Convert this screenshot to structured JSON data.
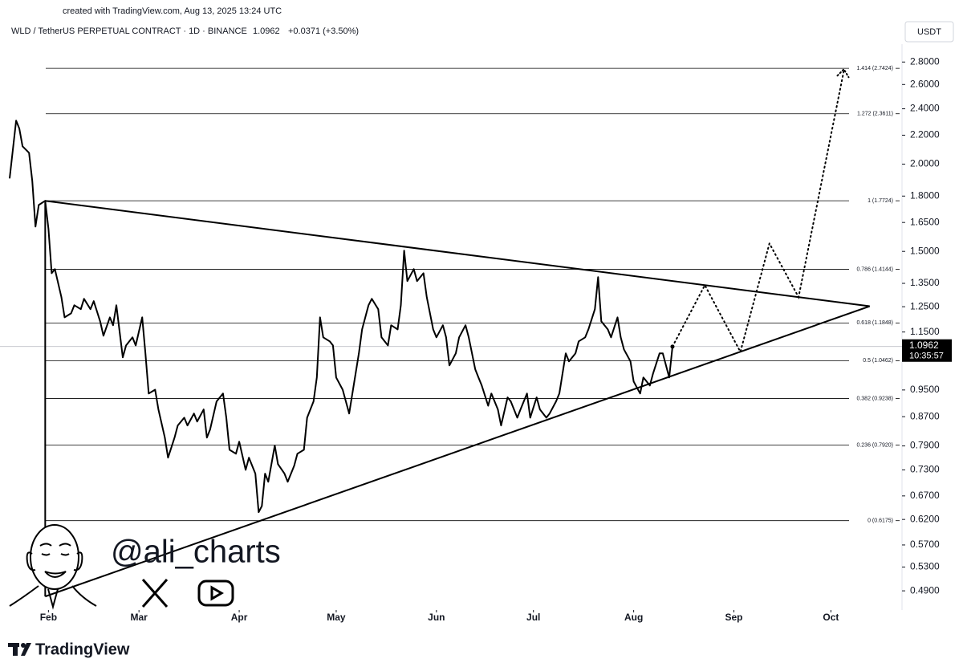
{
  "chart_data": {
    "type": "line",
    "created_with": "created with TradingView.com, Aug 13, 2025 13:24 UTC",
    "title": "WLD / TetherUS PERPETUAL CONTRACT · 1D · BINANCE",
    "last_price": 1.0962,
    "change": "+0.0371 (+3.50%)",
    "countdown": "10:35:57",
    "currency": "USDT",
    "watermark": "@ali_charts",
    "logo": "TradingView",
    "log_scale": true,
    "xlim": [
      19.5,
      295
    ],
    "xticks": [
      {
        "value": 32,
        "label": "Feb"
      },
      {
        "value": 60,
        "label": "Mar"
      },
      {
        "value": 91,
        "label": "Apr"
      },
      {
        "value": 121,
        "label": "May"
      },
      {
        "value": 152,
        "label": "Jun"
      },
      {
        "value": 182,
        "label": "Jul"
      },
      {
        "value": 213,
        "label": "Aug"
      },
      {
        "value": 244,
        "label": "Sep"
      },
      {
        "value": 274,
        "label": "Oct"
      }
    ],
    "ylim": [
      2.97,
      0.46
    ],
    "yticks": [
      {
        "value": 2.8,
        "label": "2.8000"
      },
      {
        "value": 2.6,
        "label": "2.6000"
      },
      {
        "value": 2.4,
        "label": "2.4000"
      },
      {
        "value": 2.2,
        "label": "2.2000"
      },
      {
        "value": 2.0,
        "label": "2.0000"
      },
      {
        "value": 1.8,
        "label": "1.8000"
      },
      {
        "value": 1.65,
        "label": "1.6500"
      },
      {
        "value": 1.5,
        "label": "1.5000"
      },
      {
        "value": 1.35,
        "label": "1.3500"
      },
      {
        "value": 1.25,
        "label": "1.2500"
      },
      {
        "value": 1.15,
        "label": "1.1500"
      },
      {
        "value": 0.95,
        "label": "0.9500"
      },
      {
        "value": 0.87,
        "label": "0.8700"
      },
      {
        "value": 0.79,
        "label": "0.7900"
      },
      {
        "value": 0.73,
        "label": "0.7300"
      },
      {
        "value": 0.67,
        "label": "0.6700"
      },
      {
        "value": 0.62,
        "label": "0.6200"
      },
      {
        "value": 0.57,
        "label": "0.5700"
      },
      {
        "value": 0.53,
        "label": "0.5300"
      },
      {
        "value": 0.49,
        "label": "0.4900"
      }
    ],
    "fib_levels": [
      {
        "value": 2.7424,
        "label": "1.414 (2.7424)"
      },
      {
        "value": 2.3611,
        "label": "1.272 (2.3611)"
      },
      {
        "value": 1.7724,
        "label": "1 (1.7724)"
      },
      {
        "value": 1.4144,
        "label": "0.786 (1.4144)"
      },
      {
        "value": 1.1848,
        "label": "0.618 (1.1848)"
      },
      {
        "value": 1.0462,
        "label": "0.5 (1.0462)"
      },
      {
        "value": 0.9238,
        "label": "0.382 (0.9238)"
      },
      {
        "value": 0.792,
        "label": "0.236 (0.7920)"
      },
      {
        "value": 0.6175,
        "label": "0 (0.6175)"
      }
    ],
    "price": {
      "color": "#000000",
      "x": [
        20,
        22,
        23,
        24,
        26,
        27,
        28,
        29,
        31,
        32,
        33,
        34,
        36,
        37,
        39,
        40,
        42,
        43,
        45,
        46,
        48,
        49,
        51,
        52,
        53,
        55,
        56,
        58,
        59,
        61,
        62,
        63,
        65,
        66,
        68,
        69,
        71,
        72,
        74,
        75,
        77,
        78,
        80,
        81,
        82,
        84,
        86,
        87,
        88,
        90,
        91,
        93,
        94,
        96,
        97,
        98,
        99,
        100,
        102,
        103,
        105,
        106,
        108,
        109,
        111,
        112,
        114,
        115,
        116,
        117,
        119,
        120,
        121,
        123,
        125,
        126,
        128,
        129,
        131,
        132,
        134,
        135,
        137,
        138,
        140,
        141,
        142,
        143,
        145,
        146,
        148,
        149,
        151,
        152,
        154,
        155,
        156,
        158,
        159,
        161,
        162,
        164,
        165,
        166,
        168,
        169,
        171,
        172,
        174,
        175,
        177,
        178,
        180,
        181,
        183,
        184,
        186,
        187,
        189,
        190,
        192,
        193,
        195,
        196,
        198,
        199,
        201,
        202,
        203,
        205,
        206,
        208,
        209,
        210,
        212,
        213,
        215,
        216,
        218,
        219,
        221,
        222,
        224,
        225
      ],
      "values": [
        1.908,
        2.308,
        2.248,
        2.121,
        2.076,
        1.893,
        1.628,
        1.748,
        1.772,
        1.615,
        1.396,
        1.415,
        1.29,
        1.207,
        1.223,
        1.256,
        1.24,
        1.283,
        1.24,
        1.273,
        1.191,
        1.136,
        1.207,
        1.176,
        1.256,
        1.058,
        1.1,
        1.13,
        1.1,
        1.207,
        1.072,
        0.939,
        0.951,
        0.891,
        0.812,
        0.76,
        0.812,
        0.845,
        0.867,
        0.845,
        0.879,
        0.856,
        0.891,
        0.812,
        0.834,
        0.915,
        0.939,
        0.867,
        0.78,
        0.77,
        0.801,
        0.73,
        0.76,
        0.721,
        0.635,
        0.648,
        0.721,
        0.702,
        0.791,
        0.744,
        0.721,
        0.702,
        0.74,
        0.77,
        0.78,
        0.867,
        0.915,
        0.99,
        1.207,
        1.13,
        1.115,
        1.1,
        0.99,
        0.951,
        0.879,
        0.939,
        1.072,
        1.16,
        1.256,
        1.283,
        1.24,
        1.13,
        1.1,
        1.176,
        1.16,
        1.256,
        1.504,
        1.36,
        1.415,
        1.36,
        1.396,
        1.29,
        1.16,
        1.13,
        1.176,
        1.13,
        1.03,
        1.072,
        1.13,
        1.176,
        1.13,
        1.017,
        0.99,
        0.964,
        0.902,
        0.939,
        0.891,
        0.845,
        0.927,
        0.915,
        0.867,
        0.891,
        0.939,
        0.867,
        0.927,
        0.891,
        0.867,
        0.879,
        0.915,
        0.939,
        1.072,
        1.044,
        1.072,
        1.115,
        1.13,
        1.16,
        1.24,
        1.378,
        1.191,
        1.16,
        1.13,
        1.207,
        1.13,
        1.086,
        1.044,
        0.977,
        0.939,
        0.99,
        0.964,
        1.003,
        1.072,
        1.072,
        0.99,
        1.096
      ]
    },
    "projection": {
      "color": "#000000",
      "x": [
        225,
        235,
        246,
        255,
        264,
        278
      ],
      "values": [
        1.096,
        1.342,
        1.077,
        1.54,
        1.29,
        2.72
      ]
    },
    "trendlines": [
      {
        "x": [
          31,
          286
        ],
        "values": [
          1.772,
          1.252
        ]
      },
      {
        "x": [
          31,
          286
        ],
        "values": [
          0.481,
          1.252
        ]
      },
      {
        "x": [
          31,
          31
        ],
        "values": [
          1.772,
          0.481
        ]
      }
    ]
  }
}
